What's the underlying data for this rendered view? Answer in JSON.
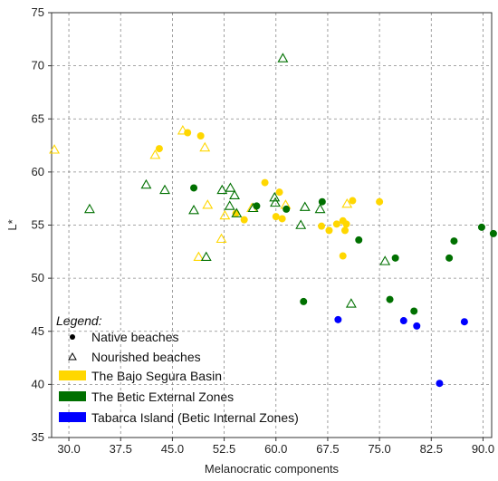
{
  "chart_data": {
    "type": "scatter",
    "xlabel": "Melanocratic components",
    "ylabel": "L*",
    "xlim": [
      27.5,
      91.25
    ],
    "ylim": [
      35,
      75
    ],
    "x_ticks": [
      "30.0",
      "37.5",
      "45.0",
      "52.5",
      "60.0",
      "67.5",
      "75.0",
      "82.5",
      "90.0"
    ],
    "y_ticks": [
      "35",
      "40",
      "45",
      "50",
      "55",
      "60",
      "65",
      "70",
      "75"
    ],
    "grid": true,
    "legend": {
      "title": "Legend:",
      "position": "bottom-left",
      "marker_entries": [
        {
          "label": "Native beaches",
          "marker": "circle"
        },
        {
          "label": "Nourished beaches",
          "marker": "triangle"
        }
      ],
      "color_entries": [
        {
          "label": "The Bajo Segura Basin",
          "color": "#ffd700"
        },
        {
          "label": "The Betic External Zones",
          "color": "#007000"
        },
        {
          "label": "Tabarca Island (Betic Internal Zones)",
          "color": "#0000ff"
        }
      ]
    },
    "series": [
      {
        "name": "The Bajo Segura Basin",
        "color": "#ffd700",
        "native": [
          [
            43.1,
            62.2
          ],
          [
            47.2,
            63.7
          ],
          [
            49.1,
            63.4
          ],
          [
            54.2,
            56.1
          ],
          [
            55.4,
            55.5
          ],
          [
            58.4,
            59.0
          ],
          [
            60.0,
            55.8
          ],
          [
            60.9,
            55.6
          ],
          [
            60.5,
            58.1
          ],
          [
            66.6,
            54.9
          ],
          [
            67.7,
            54.5
          ],
          [
            68.8,
            55.1
          ],
          [
            69.7,
            55.4
          ],
          [
            70.0,
            54.5
          ],
          [
            70.2,
            55.1
          ],
          [
            69.7,
            52.1
          ],
          [
            71.1,
            57.3
          ],
          [
            75.0,
            57.2
          ]
        ],
        "nourished": [
          [
            27.9,
            62.1
          ],
          [
            42.5,
            61.6
          ],
          [
            46.5,
            63.9
          ],
          [
            49.7,
            62.3
          ],
          [
            48.8,
            52.0
          ],
          [
            50.1,
            56.9
          ],
          [
            52.1,
            53.7
          ],
          [
            52.6,
            55.9
          ],
          [
            56.5,
            56.6
          ],
          [
            61.4,
            56.9
          ],
          [
            70.3,
            57.0
          ]
        ]
      },
      {
        "name": "The Betic External Zones",
        "color": "#007000",
        "native": [
          [
            48.1,
            58.5
          ],
          [
            57.2,
            56.8
          ],
          [
            61.5,
            56.5
          ],
          [
            66.7,
            57.2
          ],
          [
            72.0,
            53.6
          ],
          [
            77.3,
            51.9
          ],
          [
            64.0,
            47.8
          ],
          [
            76.5,
            48.0
          ],
          [
            80.0,
            46.9
          ],
          [
            85.1,
            51.9
          ],
          [
            85.8,
            53.5
          ],
          [
            89.8,
            54.8
          ],
          [
            91.5,
            54.2
          ]
        ],
        "nourished": [
          [
            33.0,
            56.5
          ],
          [
            41.2,
            58.8
          ],
          [
            43.9,
            58.3
          ],
          [
            48.1,
            56.4
          ],
          [
            49.9,
            52.0
          ],
          [
            52.2,
            58.3
          ],
          [
            53.4,
            58.5
          ],
          [
            54.0,
            57.8
          ],
          [
            53.3,
            56.8
          ],
          [
            54.3,
            56.1
          ],
          [
            56.7,
            56.6
          ],
          [
            59.8,
            57.6
          ],
          [
            59.9,
            57.1
          ],
          [
            61.0,
            70.7
          ],
          [
            63.6,
            55.0
          ],
          [
            64.2,
            56.7
          ],
          [
            66.4,
            56.5
          ],
          [
            70.9,
            47.6
          ],
          [
            75.8,
            51.6
          ]
        ]
      },
      {
        "name": "Tabarca Island (Betic Internal Zones)",
        "color": "#0000ff",
        "native": [
          [
            69.0,
            46.1
          ],
          [
            78.5,
            46.0
          ],
          [
            80.4,
            45.5
          ],
          [
            83.7,
            40.1
          ],
          [
            87.3,
            45.9
          ]
        ],
        "nourished": []
      }
    ]
  }
}
